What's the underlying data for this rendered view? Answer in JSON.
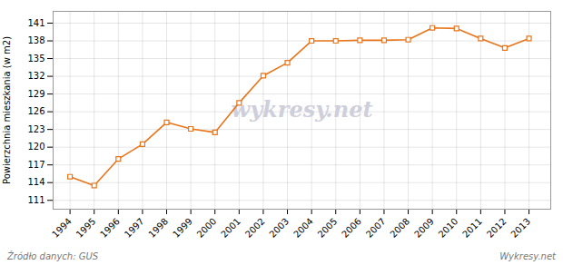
{
  "chart_data": {
    "type": "line",
    "x": [
      1994,
      1995,
      1996,
      1997,
      1998,
      1999,
      2000,
      2001,
      2002,
      2003,
      2004,
      2005,
      2006,
      2007,
      2008,
      2009,
      2010,
      2011,
      2012,
      2013
    ],
    "values": [
      115.0,
      113.5,
      118.0,
      120.5,
      124.2,
      123.1,
      122.5,
      127.5,
      132.1,
      134.3,
      138.0,
      138.0,
      138.1,
      138.1,
      138.2,
      140.2,
      140.1,
      138.4,
      136.8,
      138.4
    ],
    "color": "#e8751a",
    "marker": "square",
    "ylabel": "Powierzchnia mieszkania (w m2)",
    "xlim": [
      1993.3,
      2013.9
    ],
    "xticks": [
      1994,
      1995,
      1996,
      1997,
      1998,
      1999,
      2000,
      2001,
      2002,
      2003,
      2004,
      2005,
      2006,
      2007,
      2008,
      2009,
      2010,
      2011,
      2012,
      2013
    ],
    "ylim": [
      109.5,
      143.0
    ],
    "yticks": [
      111,
      114,
      117,
      120,
      123,
      126,
      129,
      132,
      135,
      138,
      141
    ],
    "grid": true,
    "annotations": [
      "wykresy.net",
      "Źródło danych:  GUS",
      "Wykresy.net"
    ]
  }
}
